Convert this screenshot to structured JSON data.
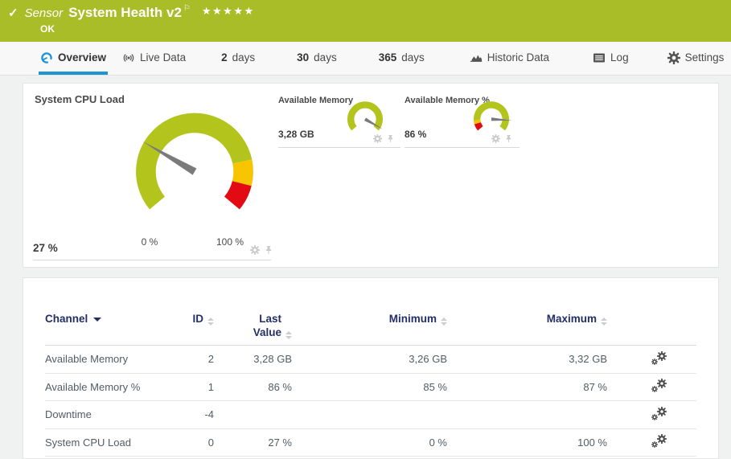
{
  "header": {
    "type_label": "Sensor",
    "title": "System Health v2",
    "status": "OK",
    "priority_stars": "★★★★★",
    "check_glyph": "✓",
    "flag_glyph": "⚐"
  },
  "tabs": [
    {
      "label": "Overview",
      "icon": "gauge-icon",
      "active": true
    },
    {
      "label": "Live Data",
      "icon": "live-icon"
    },
    {
      "prefix": "2",
      "label": "days"
    },
    {
      "prefix": "30",
      "label": "days"
    },
    {
      "prefix": "365",
      "label": "days"
    },
    {
      "label": "Historic Data",
      "icon": "chart-icon"
    },
    {
      "label": "Log",
      "icon": "log-icon"
    },
    {
      "label": "Settings",
      "icon": "settings-icon"
    }
  ],
  "chart_data": [
    {
      "type": "gauge",
      "title": "System CPU Load",
      "value": 27,
      "value_label": "27 %",
      "min_label": "0 %",
      "max_label": "100 %",
      "range": [
        0,
        100
      ],
      "needle_pct": 27,
      "segments": [
        {
          "from": 0,
          "to": 80,
          "color": "#b3c41c"
        },
        {
          "from": 80,
          "to": 90,
          "color": "#f7c500"
        },
        {
          "from": 90,
          "to": 100,
          "color": "#e30b13"
        }
      ]
    },
    {
      "type": "gauge",
      "title": "Available Memory",
      "value_label": "3,28 GB",
      "needle_pct": 96,
      "segments": [
        {
          "from": 0,
          "to": 100,
          "color": "#b3c41c"
        }
      ]
    },
    {
      "type": "gauge",
      "title": "Available Memory %",
      "value": 86,
      "value_label": "86 %",
      "needle_pct": 86,
      "segments": [
        {
          "from": 0,
          "to": 9,
          "color": "#e30b13"
        },
        {
          "from": 9,
          "to": 14,
          "color": "#f7c500"
        },
        {
          "from": 14,
          "to": 100,
          "color": "#b3c41c"
        }
      ]
    }
  ],
  "table": {
    "headers": {
      "channel": "Channel",
      "id": "ID",
      "last_value": "Last Value",
      "minimum": "Minimum",
      "maximum": "Maximum"
    },
    "rows": [
      {
        "channel": "Available Memory",
        "id": "2",
        "last": "3,28 GB",
        "min": "3,26 GB",
        "max": "3,32 GB"
      },
      {
        "channel": "Available Memory %",
        "id": "1",
        "last": "86 %",
        "min": "85 %",
        "max": "87 %"
      },
      {
        "channel": "Downtime",
        "id": "-4",
        "last": "",
        "min": "",
        "max": ""
      },
      {
        "channel": "System CPU Load",
        "id": "0",
        "last": "27 %",
        "min": "0 %",
        "max": "100 %"
      }
    ]
  },
  "colors": {
    "header_bg": "#a9bd28",
    "accent_blue": "#1b95d1",
    "gauge_green": "#b3c41c",
    "gauge_amber": "#f7c500",
    "gauge_red": "#e30b13",
    "needle": "#7b7b7b",
    "table_header_text": "#232f66"
  }
}
